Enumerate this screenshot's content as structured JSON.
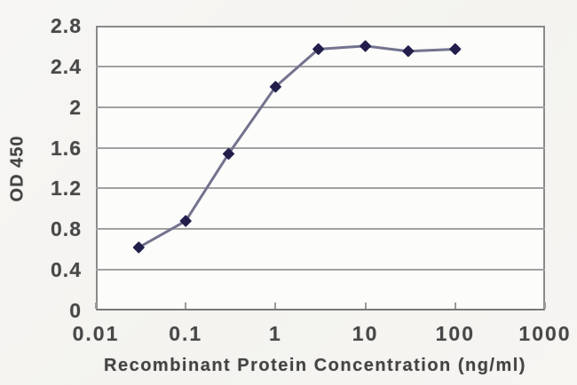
{
  "figure": {
    "colors": {
      "background": "#f5f4f1",
      "plot_background": "#fcfcfb",
      "border": "#8a8a8a",
      "gridline": "#a0a0a0",
      "line": "#73738e",
      "marker": "#221e4c",
      "text": "#484848"
    }
  },
  "chart_data": {
    "type": "line",
    "title": "",
    "xlabel": "Recombinant Protein Concentration (ng/ml)",
    "ylabel": "OD 450",
    "x_scale": "log",
    "xlim": [
      0.01,
      1000
    ],
    "ylim": [
      0,
      2.8
    ],
    "x_ticks": [
      0.01,
      0.1,
      1,
      10,
      100,
      1000
    ],
    "x_tick_labels": [
      "0.01",
      "0.1",
      "1",
      "10",
      "100",
      "1000"
    ],
    "y_ticks": [
      0,
      0.4,
      0.8,
      1.2,
      1.6,
      2,
      2.4,
      2.8
    ],
    "y_tick_labels": [
      "0",
      "0.4",
      "0.8",
      "1.2",
      "1.6",
      "2",
      "2.4",
      "2.8"
    ],
    "grid": "horizontal",
    "legend": "none",
    "series": [
      {
        "marker": "diamond",
        "x": [
          0.03,
          0.1,
          0.3,
          1,
          3,
          10,
          30,
          100
        ],
        "y": [
          0.62,
          0.88,
          1.54,
          2.2,
          2.57,
          2.6,
          2.55,
          2.57
        ]
      }
    ]
  }
}
